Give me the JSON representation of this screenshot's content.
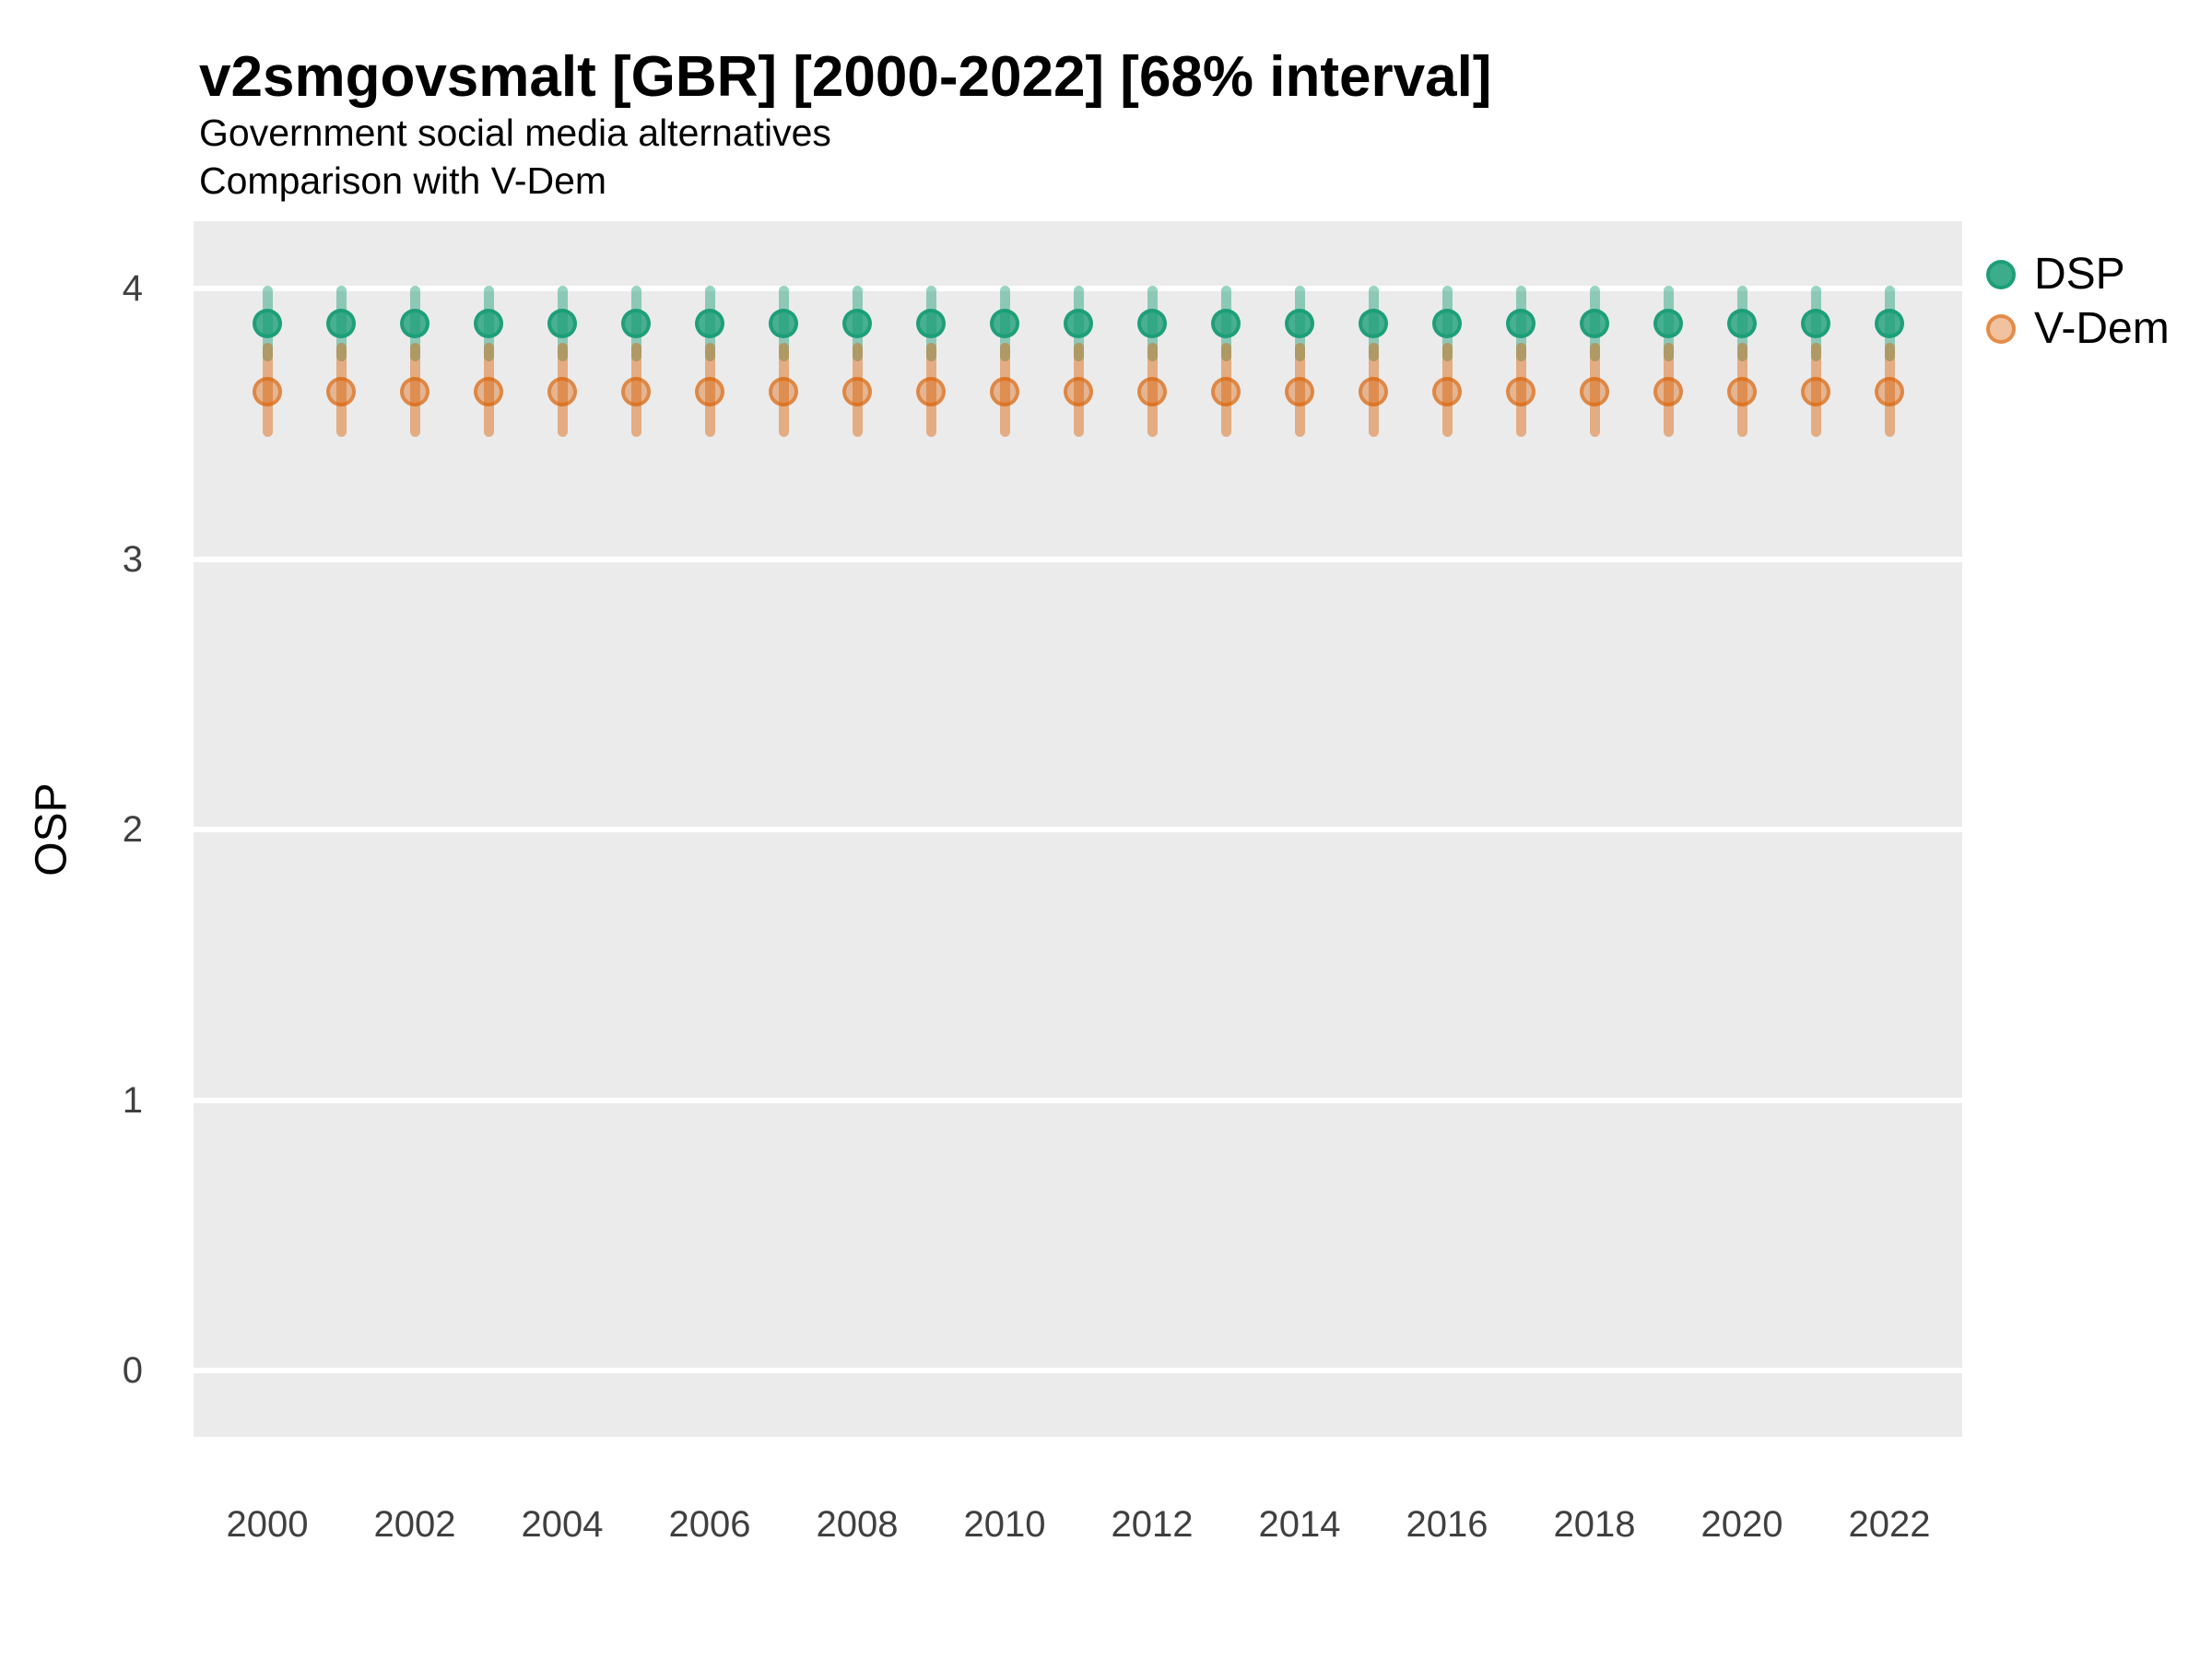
{
  "header": {
    "title": "v2smgovsmalt [GBR] [2000-2022] [68% interval]",
    "subtitle1": "Government social media alternatives",
    "subtitle2": "Comparison with V-Dem"
  },
  "y_axis_label": "OSP",
  "legend": {
    "items": [
      {
        "label": "DSP",
        "color": "#1B9E77"
      },
      {
        "label": "V-Dem",
        "color": "#D95F02"
      }
    ]
  },
  "colors": {
    "panel_background": "#EBEBEB",
    "gridline": "#FFFFFF",
    "dsp": "#1B9E77",
    "vdem": "#D95F02"
  },
  "chart_data": {
    "type": "scatter",
    "mark": "pointrange",
    "interval": "68%",
    "x": [
      2000,
      2001,
      2002,
      2003,
      2004,
      2005,
      2006,
      2007,
      2008,
      2009,
      2010,
      2011,
      2012,
      2013,
      2014,
      2015,
      2016,
      2017,
      2018,
      2019,
      2020,
      2021,
      2022
    ],
    "x_tick_labels": [
      "2000",
      "2002",
      "2004",
      "2006",
      "2008",
      "2010",
      "2012",
      "2014",
      "2016",
      "2018",
      "2020",
      "2022"
    ],
    "y_ticks": [
      4,
      3,
      2,
      1,
      0
    ],
    "ylim": [
      -0.25,
      4.25
    ],
    "xlim": [
      1999,
      2023
    ],
    "grid": "horizontal-major-only",
    "legend_position": "right",
    "series": [
      {
        "name": "DSP",
        "color": "#1B9E77",
        "values": [
          3.87,
          3.87,
          3.87,
          3.87,
          3.87,
          3.87,
          3.87,
          3.87,
          3.87,
          3.87,
          3.87,
          3.87,
          3.87,
          3.87,
          3.87,
          3.87,
          3.87,
          3.87,
          3.87,
          3.87,
          3.87,
          3.87,
          3.87
        ],
        "lower": [
          3.73,
          3.73,
          3.73,
          3.73,
          3.73,
          3.73,
          3.73,
          3.73,
          3.73,
          3.73,
          3.73,
          3.73,
          3.73,
          3.73,
          3.73,
          3.73,
          3.73,
          3.73,
          3.73,
          3.73,
          3.73,
          3.73,
          3.73
        ],
        "upper": [
          4.01,
          4.01,
          4.01,
          4.01,
          4.01,
          4.01,
          4.01,
          4.01,
          4.01,
          4.01,
          4.01,
          4.01,
          4.01,
          4.01,
          4.01,
          4.01,
          4.01,
          4.01,
          4.01,
          4.01,
          4.01,
          4.01,
          4.01
        ]
      },
      {
        "name": "V-Dem",
        "color": "#D95F02",
        "values": [
          3.62,
          3.62,
          3.62,
          3.62,
          3.62,
          3.62,
          3.62,
          3.62,
          3.62,
          3.62,
          3.62,
          3.62,
          3.62,
          3.62,
          3.62,
          3.62,
          3.62,
          3.62,
          3.62,
          3.62,
          3.62,
          3.62,
          3.62
        ],
        "lower": [
          3.45,
          3.45,
          3.45,
          3.45,
          3.45,
          3.45,
          3.45,
          3.45,
          3.45,
          3.45,
          3.45,
          3.45,
          3.45,
          3.45,
          3.45,
          3.45,
          3.45,
          3.45,
          3.45,
          3.45,
          3.45,
          3.45,
          3.45
        ],
        "upper": [
          3.8,
          3.8,
          3.8,
          3.8,
          3.8,
          3.8,
          3.8,
          3.8,
          3.8,
          3.8,
          3.8,
          3.8,
          3.8,
          3.8,
          3.8,
          3.8,
          3.8,
          3.8,
          3.8,
          3.8,
          3.8,
          3.8,
          3.8
        ]
      }
    ]
  }
}
